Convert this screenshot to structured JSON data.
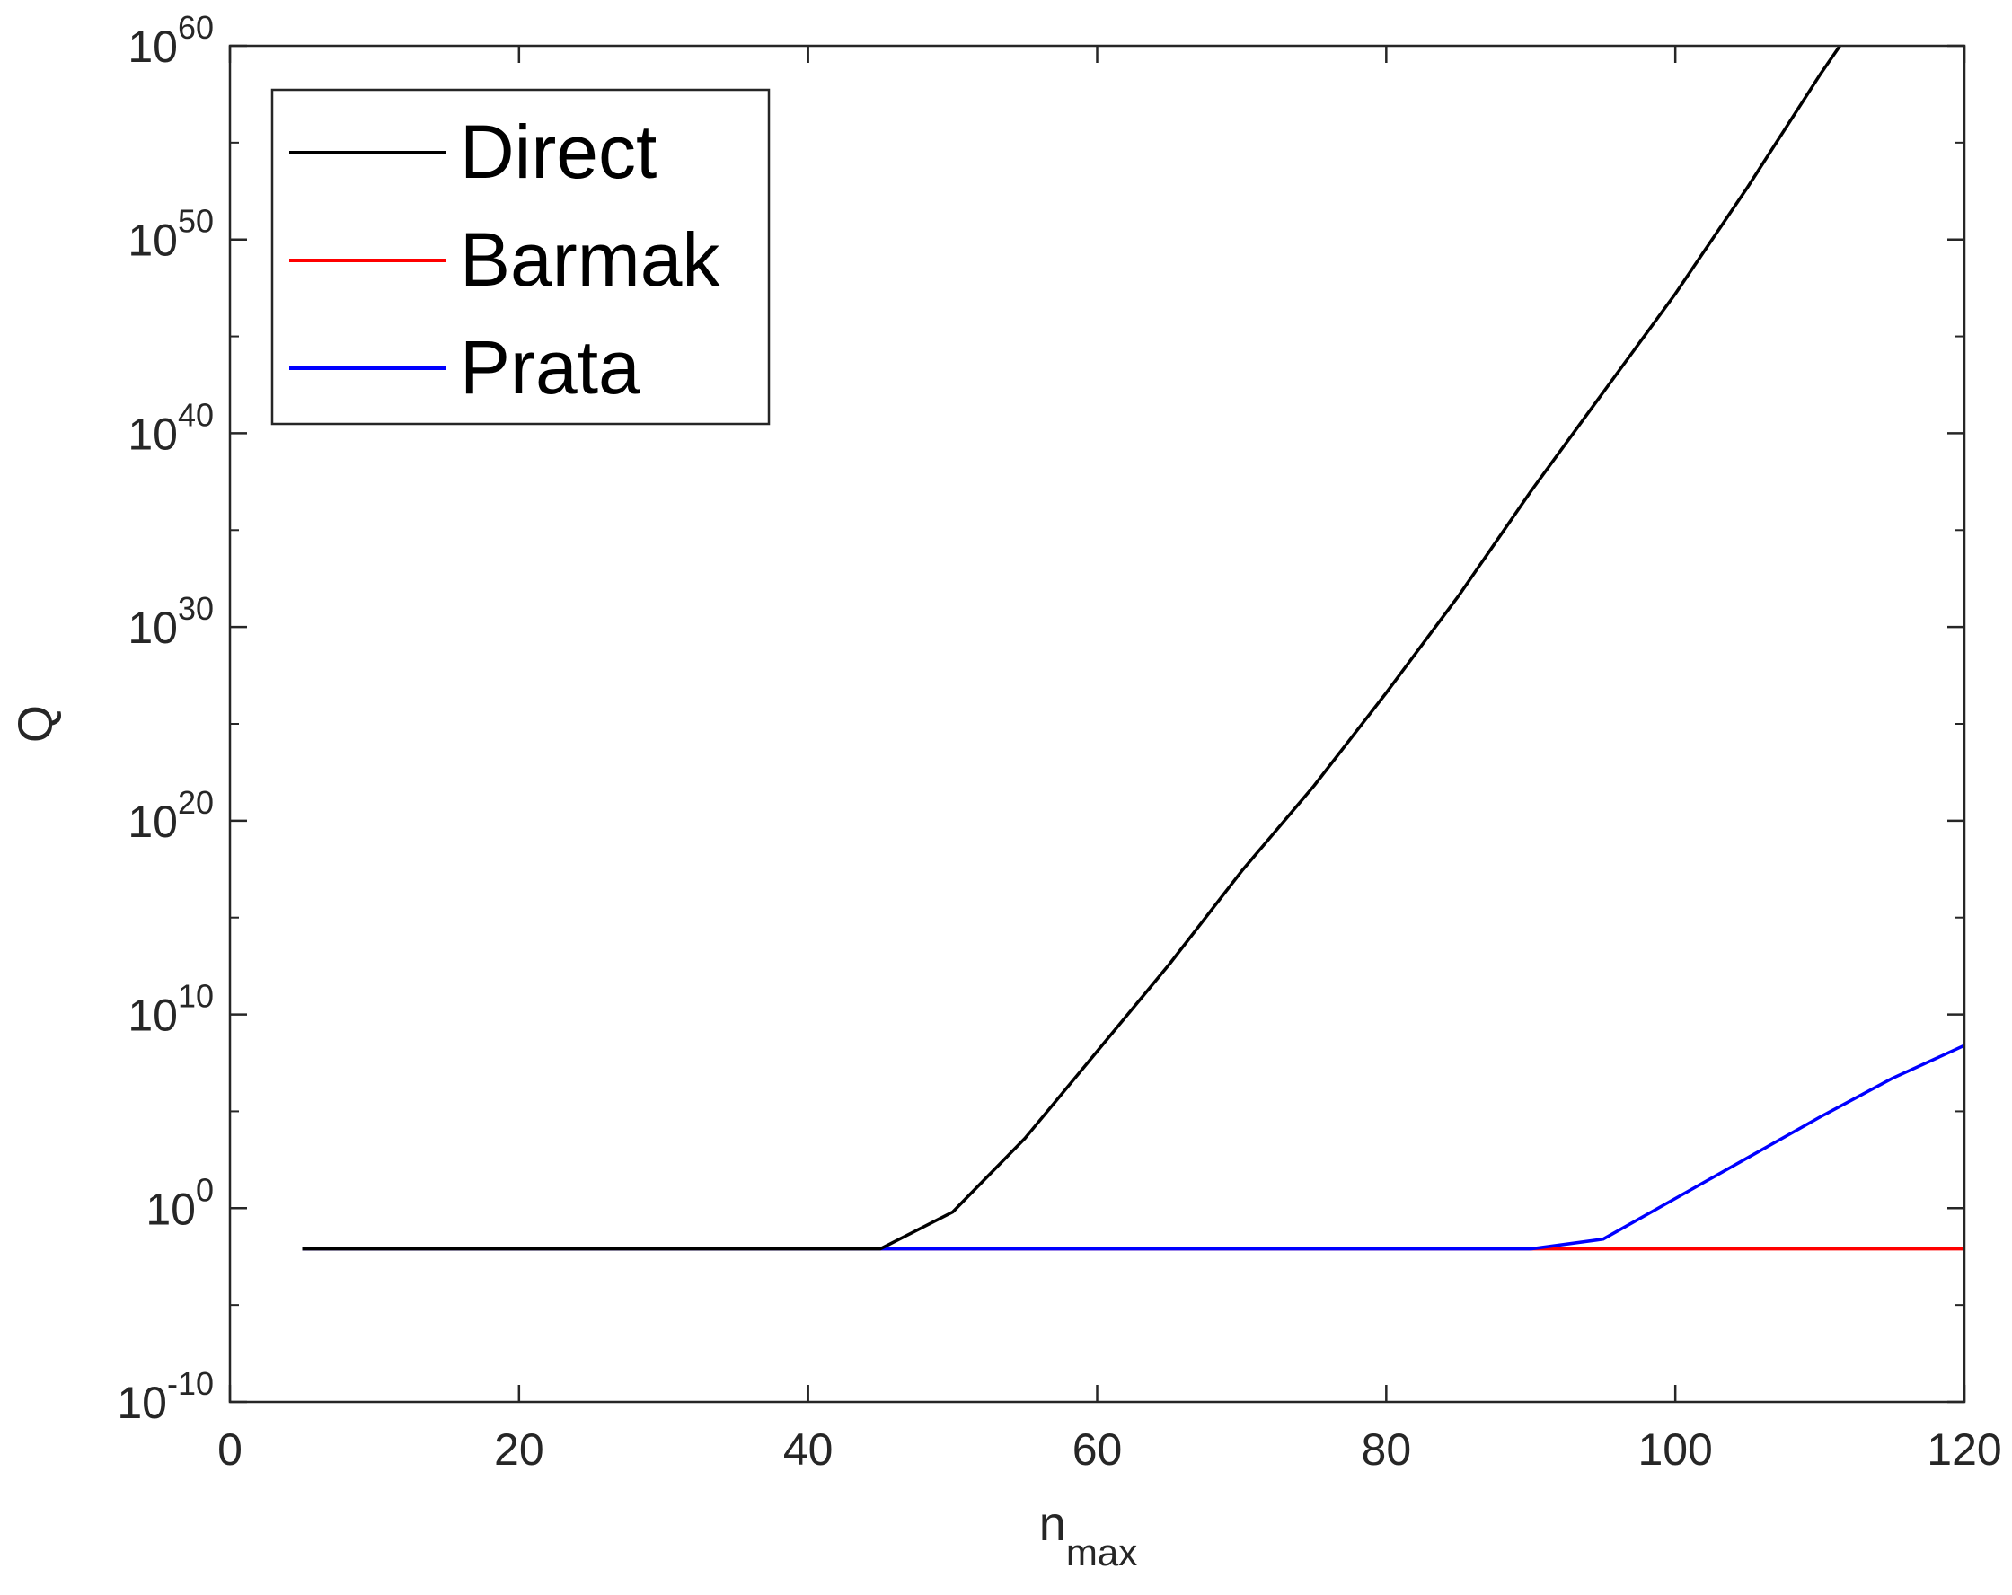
{
  "chart_data": {
    "type": "line",
    "title": "",
    "xlabel": {
      "base": "n",
      "sub": "max"
    },
    "ylabel": "Q",
    "xlim": [
      0,
      120
    ],
    "ylim_log10": [
      -10,
      60
    ],
    "yscale": "log",
    "grid": false,
    "legend_position": "top-left",
    "xticks": [
      0,
      20,
      40,
      60,
      80,
      100,
      120
    ],
    "xtick_labels": [
      "0",
      "20",
      "40",
      "60",
      "80",
      "100",
      "120"
    ],
    "yticks_log10": [
      -10,
      0,
      10,
      20,
      30,
      40,
      50,
      60
    ],
    "ytick_labels": [
      {
        "base": "10",
        "exp": "-10"
      },
      {
        "base": "10",
        "exp": "0"
      },
      {
        "base": "10",
        "exp": "10"
      },
      {
        "base": "10",
        "exp": "20"
      },
      {
        "base": "10",
        "exp": "30"
      },
      {
        "base": "10",
        "exp": "40"
      },
      {
        "base": "10",
        "exp": "50"
      },
      {
        "base": "10",
        "exp": "60"
      }
    ],
    "series": [
      {
        "name": "Direct",
        "color": "#000000",
        "x": [
          5,
          10,
          15,
          20,
          25,
          30,
          35,
          40,
          45,
          50,
          55,
          60,
          65,
          70,
          75,
          80,
          85,
          90,
          95,
          100,
          105,
          110,
          115,
          120
        ],
        "log10_y": [
          -2.1,
          -2.1,
          -2.1,
          -2.1,
          -2.1,
          -2.1,
          -2.1,
          -2.1,
          -2.1,
          -0.2,
          3.6,
          8.1,
          12.6,
          17.4,
          21.8,
          26.6,
          31.6,
          37.0,
          42.1,
          47.2,
          52.7,
          58.5,
          63.9,
          69.5
        ]
      },
      {
        "name": "Barmak",
        "color": "#ff0000",
        "x": [
          5,
          10,
          15,
          20,
          25,
          30,
          35,
          40,
          45,
          50,
          55,
          60,
          65,
          70,
          75,
          80,
          85,
          90,
          95,
          100,
          105,
          110,
          115,
          120
        ],
        "log10_y": [
          -2.1,
          -2.1,
          -2.1,
          -2.1,
          -2.1,
          -2.1,
          -2.1,
          -2.1,
          -2.1,
          -2.1,
          -2.1,
          -2.1,
          -2.1,
          -2.1,
          -2.1,
          -2.1,
          -2.1,
          -2.1,
          -2.1,
          -2.1,
          -2.1,
          -2.1,
          -2.1,
          -2.1
        ]
      },
      {
        "name": "Prata",
        "color": "#0000ff",
        "x": [
          5,
          10,
          15,
          20,
          25,
          30,
          35,
          40,
          45,
          50,
          55,
          60,
          65,
          70,
          75,
          80,
          85,
          90,
          95,
          100,
          105,
          110,
          115,
          120
        ],
        "log10_y": [
          -2.1,
          -2.1,
          -2.1,
          -2.1,
          -2.1,
          -2.1,
          -2.1,
          -2.1,
          -2.1,
          -2.1,
          -2.1,
          -2.1,
          -2.1,
          -2.1,
          -2.1,
          -2.1,
          -2.1,
          -2.1,
          -1.6,
          0.5,
          2.6,
          4.7,
          6.7,
          8.4
        ]
      }
    ]
  }
}
